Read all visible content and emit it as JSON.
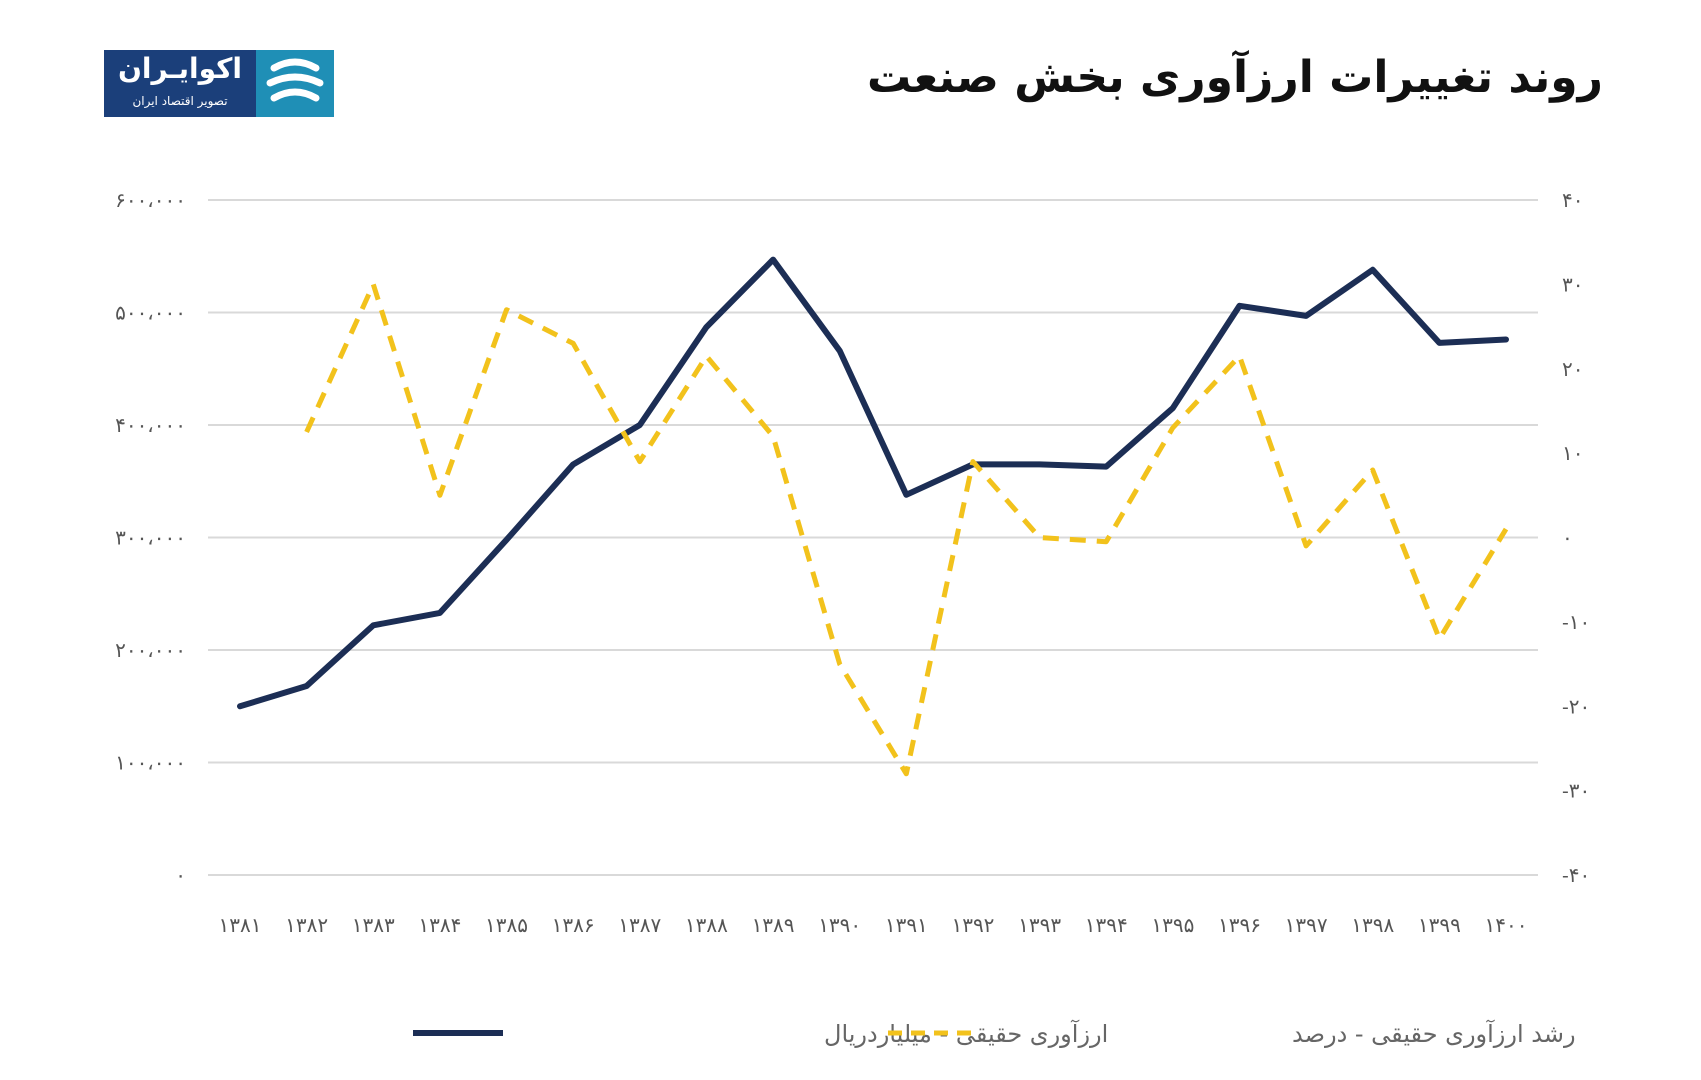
{
  "title": "روند تغییرات ارزآوری بخش صنعت",
  "logo": {
    "name": "اکوایـران",
    "tagline": "تصویر اقتصاد ایران"
  },
  "colors": {
    "series1": "#1c2e55",
    "series2": "#f2c21c",
    "grid": "#d9d9d9",
    "title": "#111111"
  },
  "chart_data": {
    "type": "line",
    "x": [
      "۱۳۸۱",
      "۱۳۸۲",
      "۱۳۸۳",
      "۱۳۸۴",
      "۱۳۸۵",
      "۱۳۸۶",
      "۱۳۸۷",
      "۱۳۸۸",
      "۱۳۸۹",
      "۱۳۹۰",
      "۱۳۹۱",
      "۱۳۹۲",
      "۱۳۹۳",
      "۱۳۹۴",
      "۱۳۹۵",
      "۱۳۹۶",
      "۱۳۹۷",
      "۱۳۹۸",
      "۱۳۹۹",
      "۱۴۰۰"
    ],
    "left_axis": {
      "ylim": [
        0,
        600000
      ],
      "ticks": [
        0,
        100000,
        200000,
        300000,
        400000,
        500000,
        600000
      ],
      "tick_labels": [
        "۰",
        "۱۰۰،۰۰۰",
        "۲۰۰،۰۰۰",
        "۳۰۰،۰۰۰",
        "۴۰۰،۰۰۰",
        "۵۰۰،۰۰۰",
        "۶۰۰،۰۰۰"
      ]
    },
    "right_axis": {
      "ylim": [
        -40,
        40
      ],
      "ticks": [
        -40,
        -30,
        -20,
        -10,
        0,
        10,
        20,
        30,
        40
      ],
      "tick_labels": [
        "-۴۰",
        "-۳۰",
        "-۲۰",
        "-۱۰",
        "۰",
        "۱۰",
        "۲۰",
        "۳۰",
        "۴۰"
      ]
    },
    "series": [
      {
        "name": "ارزآوری حقیقی - میلیاردریال",
        "axis": "left",
        "style": "solid",
        "values": [
          150000,
          168000,
          222000,
          233000,
          298000,
          365000,
          400000,
          487000,
          547000,
          466000,
          338000,
          365000,
          365000,
          363000,
          415000,
          506000,
          497000,
          538000,
          473000,
          476000
        ]
      },
      {
        "name": "رشد ارزآوری حقیقی - درصد",
        "axis": "right",
        "style": "dashed",
        "values": [
          null,
          12.5,
          30,
          5,
          27,
          23,
          9,
          21.5,
          12,
          -15,
          -28,
          9,
          0,
          -0.5,
          13,
          21.5,
          -1,
          8,
          -12,
          1
        ]
      }
    ],
    "grid": true,
    "legend": "bottom"
  }
}
